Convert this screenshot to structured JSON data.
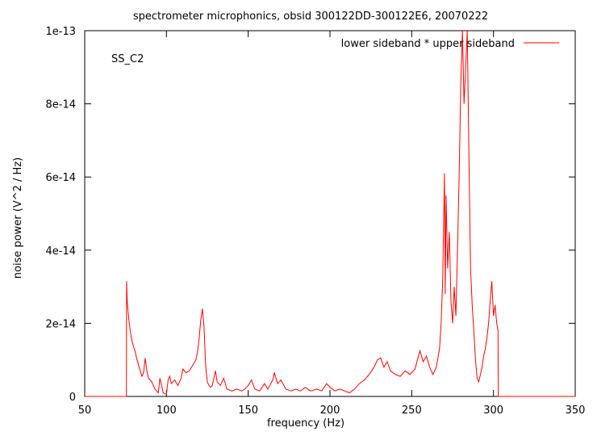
{
  "chart_data": {
    "type": "line",
    "title": "spectrometer microphonics, obsid 300122DD-300122E6, 20070222",
    "xlabel": "frequency (Hz)",
    "ylabel": "noise power (V^2 / Hz)",
    "xlim": [
      50,
      350
    ],
    "ylim": [
      0,
      1e-13
    ],
    "x_ticks": [
      50,
      100,
      150,
      200,
      250,
      300,
      350
    ],
    "x_tick_labels": [
      "50",
      "100",
      "150",
      "200",
      "250",
      "300",
      "350"
    ],
    "y_ticks": [
      0,
      2e-14,
      4e-14,
      6e-14,
      8e-14,
      1e-13
    ],
    "y_tick_labels": [
      "0",
      "2e-14",
      "4e-14",
      "6e-14",
      "8e-14",
      "1e-13"
    ],
    "grid": false,
    "legend_position": "top-right",
    "annotation": "SS_C2",
    "series": [
      {
        "name": "lower sideband * upper sideband",
        "color": "#ff0000",
        "points": [
          [
            50,
            0
          ],
          [
            75.5,
            0
          ],
          [
            75.6,
            3.15e-14
          ],
          [
            76,
            2.6e-14
          ],
          [
            77,
            2.1e-14
          ],
          [
            78,
            1.75e-14
          ],
          [
            79,
            1.5e-14
          ],
          [
            80,
            1.35e-14
          ],
          [
            81,
            1.2e-14
          ],
          [
            82,
            1e-14
          ],
          [
            83,
            8.5e-15
          ],
          [
            84,
            7e-15
          ],
          [
            85,
            5.5e-15
          ],
          [
            86,
            6.5e-15
          ],
          [
            87,
            1.05e-14
          ],
          [
            88,
            7e-15
          ],
          [
            89,
            5e-15
          ],
          [
            90,
            4.5e-15
          ],
          [
            91,
            4e-15
          ],
          [
            92,
            3e-15
          ],
          [
            93,
            2e-15
          ],
          [
            94,
            1.5e-15
          ],
          [
            95,
            1e-15
          ],
          [
            96,
            5e-15
          ],
          [
            97,
            3e-15
          ],
          [
            98,
            1e-15
          ],
          [
            99,
            8e-16
          ],
          [
            100,
            6e-16
          ],
          [
            101,
            4.5e-15
          ],
          [
            102,
            5.5e-15
          ],
          [
            103,
            3.5e-15
          ],
          [
            105,
            4.5e-15
          ],
          [
            107,
            3e-15
          ],
          [
            109,
            5e-15
          ],
          [
            110,
            7.5e-15
          ],
          [
            112,
            6.5e-15
          ],
          [
            114,
            7e-15
          ],
          [
            116,
            8.5e-15
          ],
          [
            118,
            1e-14
          ],
          [
            119,
            1.2e-14
          ],
          [
            120,
            1.6e-14
          ],
          [
            121,
            2.1e-14
          ],
          [
            122,
            2.4e-14
          ],
          [
            123,
            1.9e-14
          ],
          [
            124,
            8e-15
          ],
          [
            125,
            4e-15
          ],
          [
            126,
            3e-15
          ],
          [
            127,
            2.5e-15
          ],
          [
            128,
            3e-15
          ],
          [
            129,
            5e-15
          ],
          [
            130,
            7e-15
          ],
          [
            131,
            4e-15
          ],
          [
            133,
            3e-15
          ],
          [
            135,
            5e-15
          ],
          [
            137,
            2e-15
          ],
          [
            140,
            1.5e-15
          ],
          [
            143,
            2e-15
          ],
          [
            146,
            1.5e-15
          ],
          [
            148,
            2e-15
          ],
          [
            150,
            3e-15
          ],
          [
            152,
            4.5e-15
          ],
          [
            154,
            2e-15
          ],
          [
            157,
            1.5e-15
          ],
          [
            160,
            3.5e-15
          ],
          [
            162,
            2e-15
          ],
          [
            165,
            4.5e-15
          ],
          [
            166,
            6.5e-15
          ],
          [
            168,
            3.5e-15
          ],
          [
            170,
            4.5e-15
          ],
          [
            173,
            2e-15
          ],
          [
            176,
            1.5e-15
          ],
          [
            179,
            2e-15
          ],
          [
            182,
            1.5e-15
          ],
          [
            185,
            2.5e-15
          ],
          [
            188,
            1.5e-15
          ],
          [
            192,
            2e-15
          ],
          [
            195,
            1.5e-15
          ],
          [
            198,
            3.5e-15
          ],
          [
            200,
            2.5e-15
          ],
          [
            203,
            1.5e-15
          ],
          [
            206,
            2e-15
          ],
          [
            209,
            1.5e-15
          ],
          [
            212,
            1e-15
          ],
          [
            215,
            2e-15
          ],
          [
            218,
            3.5e-15
          ],
          [
            221,
            4.5e-15
          ],
          [
            224,
            6e-15
          ],
          [
            227,
            8e-15
          ],
          [
            229,
            1e-14
          ],
          [
            231,
            1.05e-14
          ],
          [
            233,
            8e-15
          ],
          [
            235,
            9.5e-15
          ],
          [
            237,
            7e-15
          ],
          [
            240,
            6e-15
          ],
          [
            243,
            5.5e-15
          ],
          [
            246,
            7e-15
          ],
          [
            249,
            6e-15
          ],
          [
            252,
            7.5e-15
          ],
          [
            255,
            1.25e-14
          ],
          [
            257,
            9.5e-15
          ],
          [
            259,
            1.1e-14
          ],
          [
            261,
            8e-15
          ],
          [
            263,
            6e-15
          ],
          [
            265,
            8e-15
          ],
          [
            267,
            1.3e-14
          ],
          [
            268,
            2e-14
          ],
          [
            269,
            3.2e-14
          ],
          [
            270,
            6.1e-14
          ],
          [
            270.5,
            2.8e-14
          ],
          [
            271,
            5.5e-14
          ],
          [
            272,
            3.5e-14
          ],
          [
            273,
            4.5e-14
          ],
          [
            274,
            2.6e-14
          ],
          [
            275,
            2e-14
          ],
          [
            276,
            3e-14
          ],
          [
            277,
            2.2e-14
          ],
          [
            278,
            4e-14
          ],
          [
            279,
            6e-14
          ],
          [
            280,
            8.5e-14
          ],
          [
            281,
            1e-13
          ],
          [
            282,
            8e-14
          ],
          [
            283,
            9e-14
          ],
          [
            284,
            1e-13
          ],
          [
            285,
            6.5e-14
          ],
          [
            286,
            3.5e-14
          ],
          [
            287,
            2.5e-14
          ],
          [
            288,
            1.8e-14
          ],
          [
            289,
            1e-14
          ],
          [
            290,
            5e-15
          ],
          [
            291,
            4e-15
          ],
          [
            292,
            6e-15
          ],
          [
            293,
            8e-15
          ],
          [
            294,
            1.1e-14
          ],
          [
            295,
            1.3e-14
          ],
          [
            296,
            1.6e-14
          ],
          [
            297,
            2e-14
          ],
          [
            298,
            2.6e-14
          ],
          [
            299,
            3.15e-14
          ],
          [
            300,
            2.2e-14
          ],
          [
            301,
            2.5e-14
          ],
          [
            302,
            2e-14
          ],
          [
            302.8,
            1.8e-14
          ],
          [
            303,
            0
          ],
          [
            350,
            0
          ]
        ]
      }
    ]
  }
}
